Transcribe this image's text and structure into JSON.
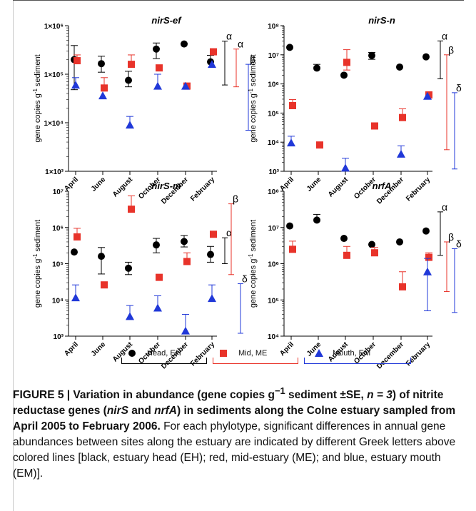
{
  "chart_data": [
    {
      "type": "scatter",
      "title": "nirS-ef",
      "ylabel": "gene copies g-1 sediment",
      "yscale": "log",
      "ylim": [
        1000,
        1000000
      ],
      "yticks": [
        "1×10³",
        "1×10⁴",
        "1×10⁵",
        "1×10⁶"
      ],
      "categories": [
        "April",
        "June",
        "August",
        "October",
        "December",
        "February"
      ],
      "series": [
        {
          "name": "Head, EH",
          "color": "#000000",
          "marker": "circle",
          "values": [
            200000,
            165000,
            75000,
            330000,
            420000,
            180000
          ],
          "err_upper": [
            390000,
            235000,
            115000,
            440000,
            430000,
            245000
          ],
          "err_lower": [
            48000,
            110000,
            55000,
            210000,
            420000,
            180000
          ]
        },
        {
          "name": "Mid, ME",
          "color": "#e8332a",
          "marker": "square",
          "values": [
            190000,
            52000,
            160000,
            135000,
            57000,
            290000
          ],
          "err_upper": [
            250000,
            85000,
            250000,
            150000,
            57000,
            290000
          ],
          "err_lower": [
            190000,
            52000,
            160000,
            135000,
            57000,
            290000
          ]
        },
        {
          "name": "Mouth, EM",
          "color": "#2038d8",
          "marker": "triangle",
          "values": [
            60000,
            36000,
            9000,
            57000,
            57000,
            160000
          ],
          "err_upper": [
            85000,
            36000,
            13500,
            100000,
            57000,
            160000
          ],
          "err_lower": [
            60000,
            36000,
            9000,
            57000,
            57000,
            160000
          ]
        }
      ],
      "significance": [
        {
          "series": "Head, EH",
          "letter": "α",
          "range": [
            60000,
            480000
          ]
        },
        {
          "series": "Mid, ME",
          "letter": "α",
          "range": [
            55000,
            330000
          ]
        },
        {
          "series": "Mouth, EM",
          "letter": "β",
          "range": [
            7000,
            160000
          ]
        }
      ]
    },
    {
      "type": "scatter",
      "title": "nirS-n",
      "ylabel": "gene copies g-1 sediment",
      "yscale": "log",
      "ylim": [
        1000,
        100000000
      ],
      "yticks": [
        "10³",
        "10⁴",
        "10⁵",
        "10⁶",
        "10⁷",
        "10⁸"
      ],
      "categories": [
        "April",
        "June",
        "August",
        "October",
        "December",
        "February"
      ],
      "series": [
        {
          "name": "Head, EH",
          "color": "#000000",
          "marker": "circle",
          "values": [
            18000000,
            3500000,
            2000000,
            9500000,
            3800000,
            8500000
          ],
          "err_upper": [
            18000000,
            4700000,
            2000000,
            12000000,
            3800000,
            8500000
          ],
          "err_lower": [
            18000000,
            3500000,
            2000000,
            7000000,
            3800000,
            8500000
          ]
        },
        {
          "name": "Mid, ME",
          "color": "#e8332a",
          "marker": "square",
          "values": [
            180000,
            8000,
            5500000,
            36000,
            70000,
            420000
          ],
          "err_upper": [
            290000,
            8000,
            15000000,
            36000,
            140000,
            480000
          ],
          "err_lower": [
            180000,
            8000,
            3000000,
            36000,
            70000,
            420000
          ]
        },
        {
          "name": "Mouth, EM",
          "color": "#2038d8",
          "marker": "triangle",
          "values": [
            9500,
            0,
            1300,
            0,
            3900,
            380000
          ],
          "err_upper": [
            16000,
            0,
            2800,
            0,
            7500,
            380000
          ],
          "err_lower": [
            9500,
            0,
            1300,
            0,
            3900,
            380000
          ]
        }
      ],
      "significance": [
        {
          "series": "Head, EH",
          "letter": "α",
          "range": [
            1500000,
            30000000
          ]
        },
        {
          "series": "Mid, ME",
          "letter": "β",
          "range": [
            5500,
            10000000
          ]
        },
        {
          "series": "Mouth, EM",
          "letter": "δ",
          "range": [
            1200,
            500000
          ]
        }
      ]
    },
    {
      "type": "scatter",
      "title": "nirS-m",
      "ylabel": "gene copies g-1 sediment",
      "yscale": "log",
      "ylim": [
        1000,
        10000000
      ],
      "yticks": [
        "10³",
        "10⁴",
        "10⁵",
        "10⁶",
        "10⁷"
      ],
      "categories": [
        "April",
        "June",
        "August",
        "October",
        "December",
        "February"
      ],
      "series": [
        {
          "name": "Head, EH",
          "color": "#000000",
          "marker": "circle",
          "values": [
            210000,
            160000,
            75000,
            330000,
            410000,
            180000
          ],
          "err_upper": [
            210000,
            280000,
            110000,
            500000,
            600000,
            300000
          ],
          "err_lower": [
            210000,
            52000,
            50000,
            200000,
            290000,
            110000
          ]
        },
        {
          "name": "Mid, ME",
          "color": "#e8332a",
          "marker": "square",
          "values": [
            550000,
            26000,
            3200000,
            42000,
            115000,
            650000
          ],
          "err_upper": [
            950000,
            26000,
            7500000,
            42000,
            200000,
            650000
          ],
          "err_lower": [
            550000,
            26000,
            3200000,
            42000,
            115000,
            650000
          ]
        },
        {
          "name": "Mouth, EM",
          "color": "#2038d8",
          "marker": "triangle",
          "values": [
            11500,
            0,
            3500,
            6000,
            1400,
            11000
          ],
          "err_upper": [
            26000,
            0,
            7000,
            13000,
            4000,
            26000
          ],
          "err_lower": [
            11500,
            0,
            3500,
            6000,
            1400,
            11000
          ]
        }
      ],
      "significance": [
        {
          "series": "Head, EH",
          "letter": "α",
          "range": [
            100000,
            520000
          ]
        },
        {
          "series": "Mid, ME",
          "letter": "β",
          "range": [
            50000,
            4500000
          ]
        },
        {
          "series": "Mouth, EM",
          "letter": "δ",
          "range": [
            1200,
            28000
          ]
        }
      ]
    },
    {
      "type": "scatter",
      "title": "nrfA",
      "ylabel": "gene copies g-1 sediment",
      "yscale": "log",
      "ylim": [
        10000,
        100000000
      ],
      "yticks": [
        "10⁴",
        "10⁵",
        "10⁶",
        "10⁷",
        "10⁸"
      ],
      "categories": [
        "April",
        "June",
        "August",
        "October",
        "December",
        "February"
      ],
      "series": [
        {
          "name": "Head, EH",
          "color": "#000000",
          "marker": "circle",
          "values": [
            11000000,
            16000000,
            5000000,
            3400000,
            4000000,
            8000000
          ],
          "err_upper": [
            11000000,
            23000000,
            5000000,
            3400000,
            4000000,
            8000000
          ],
          "err_lower": [
            11000000,
            16000000,
            5000000,
            3400000,
            4000000,
            8000000
          ]
        },
        {
          "name": "Mid, ME",
          "color": "#e8332a",
          "marker": "square",
          "values": [
            2500000,
            0,
            1700000,
            2000000,
            230000,
            1500000
          ],
          "err_upper": [
            4200000,
            0,
            3000000,
            2800000,
            600000,
            2000000
          ],
          "err_lower": [
            2500000,
            0,
            1700000,
            2000000,
            230000,
            1500000
          ]
        },
        {
          "name": "Mouth, EM",
          "color": "#2038d8",
          "marker": "triangle",
          "values": [
            0,
            0,
            0,
            0,
            0,
            600000
          ],
          "err_upper": [
            0,
            0,
            0,
            0,
            0,
            1400000
          ],
          "err_lower": [
            0,
            0,
            0,
            0,
            0,
            50000
          ]
        }
      ],
      "significance": [
        {
          "series": "Head, EH",
          "letter": "α",
          "range": [
            1700000,
            27000000
          ]
        },
        {
          "series": "Mid, ME",
          "letter": "β",
          "range": [
            170000,
            4000000
          ]
        },
        {
          "series": "Mouth, EM",
          "letter": "δ",
          "range": [
            45000,
            2600000
          ]
        }
      ]
    }
  ],
  "legend": [
    {
      "label": "Head, EH",
      "color": "#000000",
      "marker": "circle"
    },
    {
      "label": "Mid, ME",
      "color": "#e8332a",
      "marker": "square"
    },
    {
      "label": "Mouth, EM",
      "color": "#2038d8",
      "marker": "triangle"
    }
  ],
  "caption": {
    "figure_label": "FIGURE 5 | Variation in abundance (gene copies g",
    "exp": "−1",
    "bold_mid": " sediment ±SE, ",
    "n_eq": "n = 3",
    "bold_rest_a": ") of nitrite reductase genes (",
    "gene1": "nirS",
    "and_word": " and ",
    "gene2": "nrfA",
    "bold_rest_b": ") in sediments along the Colne estuary sampled from April 2005 to February 2006.",
    "normal_text": " For each phylotype, significant differences in annual gene abundances between sites along the estuary are indicated by different Greek letters above colored lines [black, estuary head (EH); red, mid-estuary (ME); and blue, estuary mouth (EM)]."
  }
}
